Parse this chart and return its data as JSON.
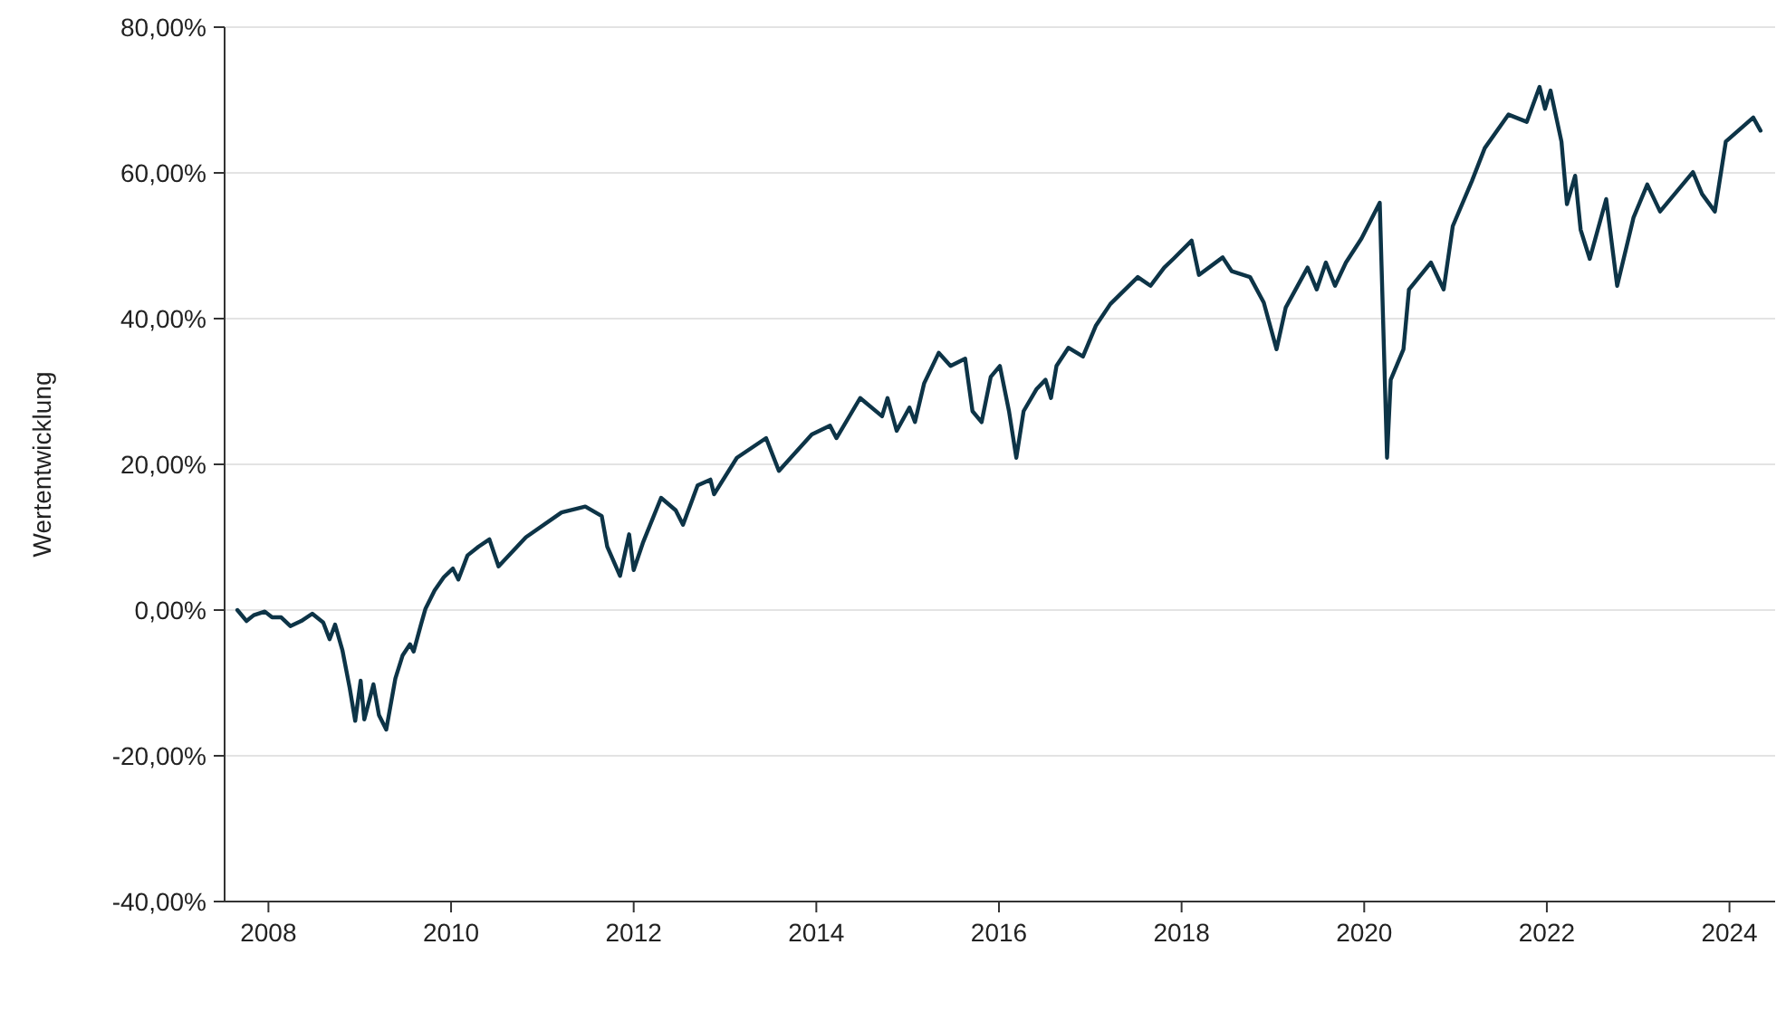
{
  "chart_data": {
    "type": "line",
    "ylabel": "Wertentwicklung",
    "xlim": [
      2007.52,
      2024.5
    ],
    "xticks": [
      2008,
      2010,
      2012,
      2014,
      2016,
      2018,
      2020,
      2022,
      2024
    ],
    "ylim": [
      -40,
      80
    ],
    "yticks": [
      {
        "value": -40,
        "label": "-40,00%"
      },
      {
        "value": -20,
        "label": "-20,00%"
      },
      {
        "value": 0,
        "label": "0,00%"
      },
      {
        "value": 20,
        "label": "20,00%"
      },
      {
        "value": 40,
        "label": "40,00%"
      },
      {
        "value": 60,
        "label": "60,00%"
      },
      {
        "value": 80,
        "label": "80,00%"
      }
    ],
    "grid": "y",
    "x": [
      2007.66,
      2007.76,
      2007.84,
      2007.96,
      2008.04,
      2008.14,
      2008.24,
      2008.36,
      2008.48,
      2008.6,
      2008.67,
      2008.73,
      2008.81,
      2008.89,
      2008.95,
      2009.01,
      2009.05,
      2009.15,
      2009.21,
      2009.29,
      2009.39,
      2009.47,
      2009.55,
      2009.59,
      2009.67,
      2009.72,
      2009.82,
      2009.92,
      2010.02,
      2010.08,
      2010.18,
      2010.3,
      2010.42,
      2010.52,
      2010.82,
      2011.21,
      2011.47,
      2011.65,
      2011.71,
      2011.85,
      2011.95,
      2012.0,
      2012.1,
      2012.3,
      2012.46,
      2012.54,
      2012.7,
      2012.84,
      2012.88,
      2013.13,
      2013.45,
      2013.59,
      2013.95,
      2014.15,
      2014.22,
      2014.48,
      2014.72,
      2014.78,
      2014.88,
      2015.02,
      2015.08,
      2015.18,
      2015.34,
      2015.47,
      2015.63,
      2015.71,
      2015.81,
      2015.91,
      2016.01,
      2016.11,
      2016.19,
      2016.27,
      2016.41,
      2016.51,
      2016.57,
      2016.63,
      2016.76,
      2016.92,
      2017.06,
      2017.22,
      2017.52,
      2017.66,
      2017.81,
      2017.91,
      2018.11,
      2018.19,
      2018.45,
      2018.55,
      2018.75,
      2018.9,
      2019.04,
      2019.14,
      2019.38,
      2019.48,
      2019.58,
      2019.68,
      2019.8,
      2019.97,
      2020.17,
      2020.19,
      2020.25,
      2020.29,
      2020.43,
      2020.49,
      2020.73,
      2020.87,
      2020.97,
      2021.18,
      2021.32,
      2021.58,
      2021.78,
      2021.92,
      2021.98,
      2022.04,
      2022.16,
      2022.22,
      2022.31,
      2022.37,
      2022.47,
      2022.65,
      2022.77,
      2022.95,
      2023.1,
      2023.24,
      2023.6,
      2023.7,
      2023.84,
      2023.96,
      2024.26,
      2024.34
    ],
    "series": [
      {
        "color": "#0d3447",
        "values": [
          0,
          -1.5,
          -0.7,
          -0.2,
          -1,
          -1,
          -2.2,
          -1.5,
          -0.5,
          -1.7,
          -4,
          -2,
          -5.5,
          -10.7,
          -15.2,
          -9.7,
          -15,
          -10.2,
          -14.4,
          -16.4,
          -9.4,
          -6.2,
          -4.7,
          -5.7,
          -2,
          0.2,
          2.7,
          4.5,
          5.7,
          4.2,
          7.5,
          8.7,
          9.7,
          6,
          10,
          13.4,
          14.2,
          12.9,
          8.7,
          4.7,
          10.4,
          5.5,
          9.2,
          15.4,
          13.7,
          11.7,
          17.1,
          17.9,
          15.9,
          20.9,
          23.6,
          19.1,
          24.1,
          25.3,
          23.6,
          29.1,
          26.6,
          29.1,
          24.6,
          27.8,
          25.8,
          31.1,
          35.3,
          33.5,
          34.5,
          27.3,
          25.8,
          32,
          33.5,
          27.3,
          20.9,
          27.3,
          30.3,
          31.6,
          29.1,
          33.5,
          36,
          34.8,
          39,
          42,
          45.7,
          44.5,
          47,
          48.2,
          50.7,
          46,
          48.4,
          46.5,
          45.7,
          42.2,
          35.8,
          41.5,
          47,
          44,
          47.7,
          44.5,
          47.7,
          51,
          55.9,
          47.2,
          20.9,
          31.6,
          35.8,
          44,
          47.7,
          44,
          52.7,
          58.9,
          63.4,
          68,
          67,
          71.8,
          68.8,
          71.3,
          64.3,
          55.7,
          59.6,
          52.2,
          48.2,
          56.4,
          44.5,
          53.9,
          58.4,
          54.7,
          60.1,
          57.1,
          54.7,
          64.3,
          67.6,
          65.8
        ]
      }
    ]
  }
}
